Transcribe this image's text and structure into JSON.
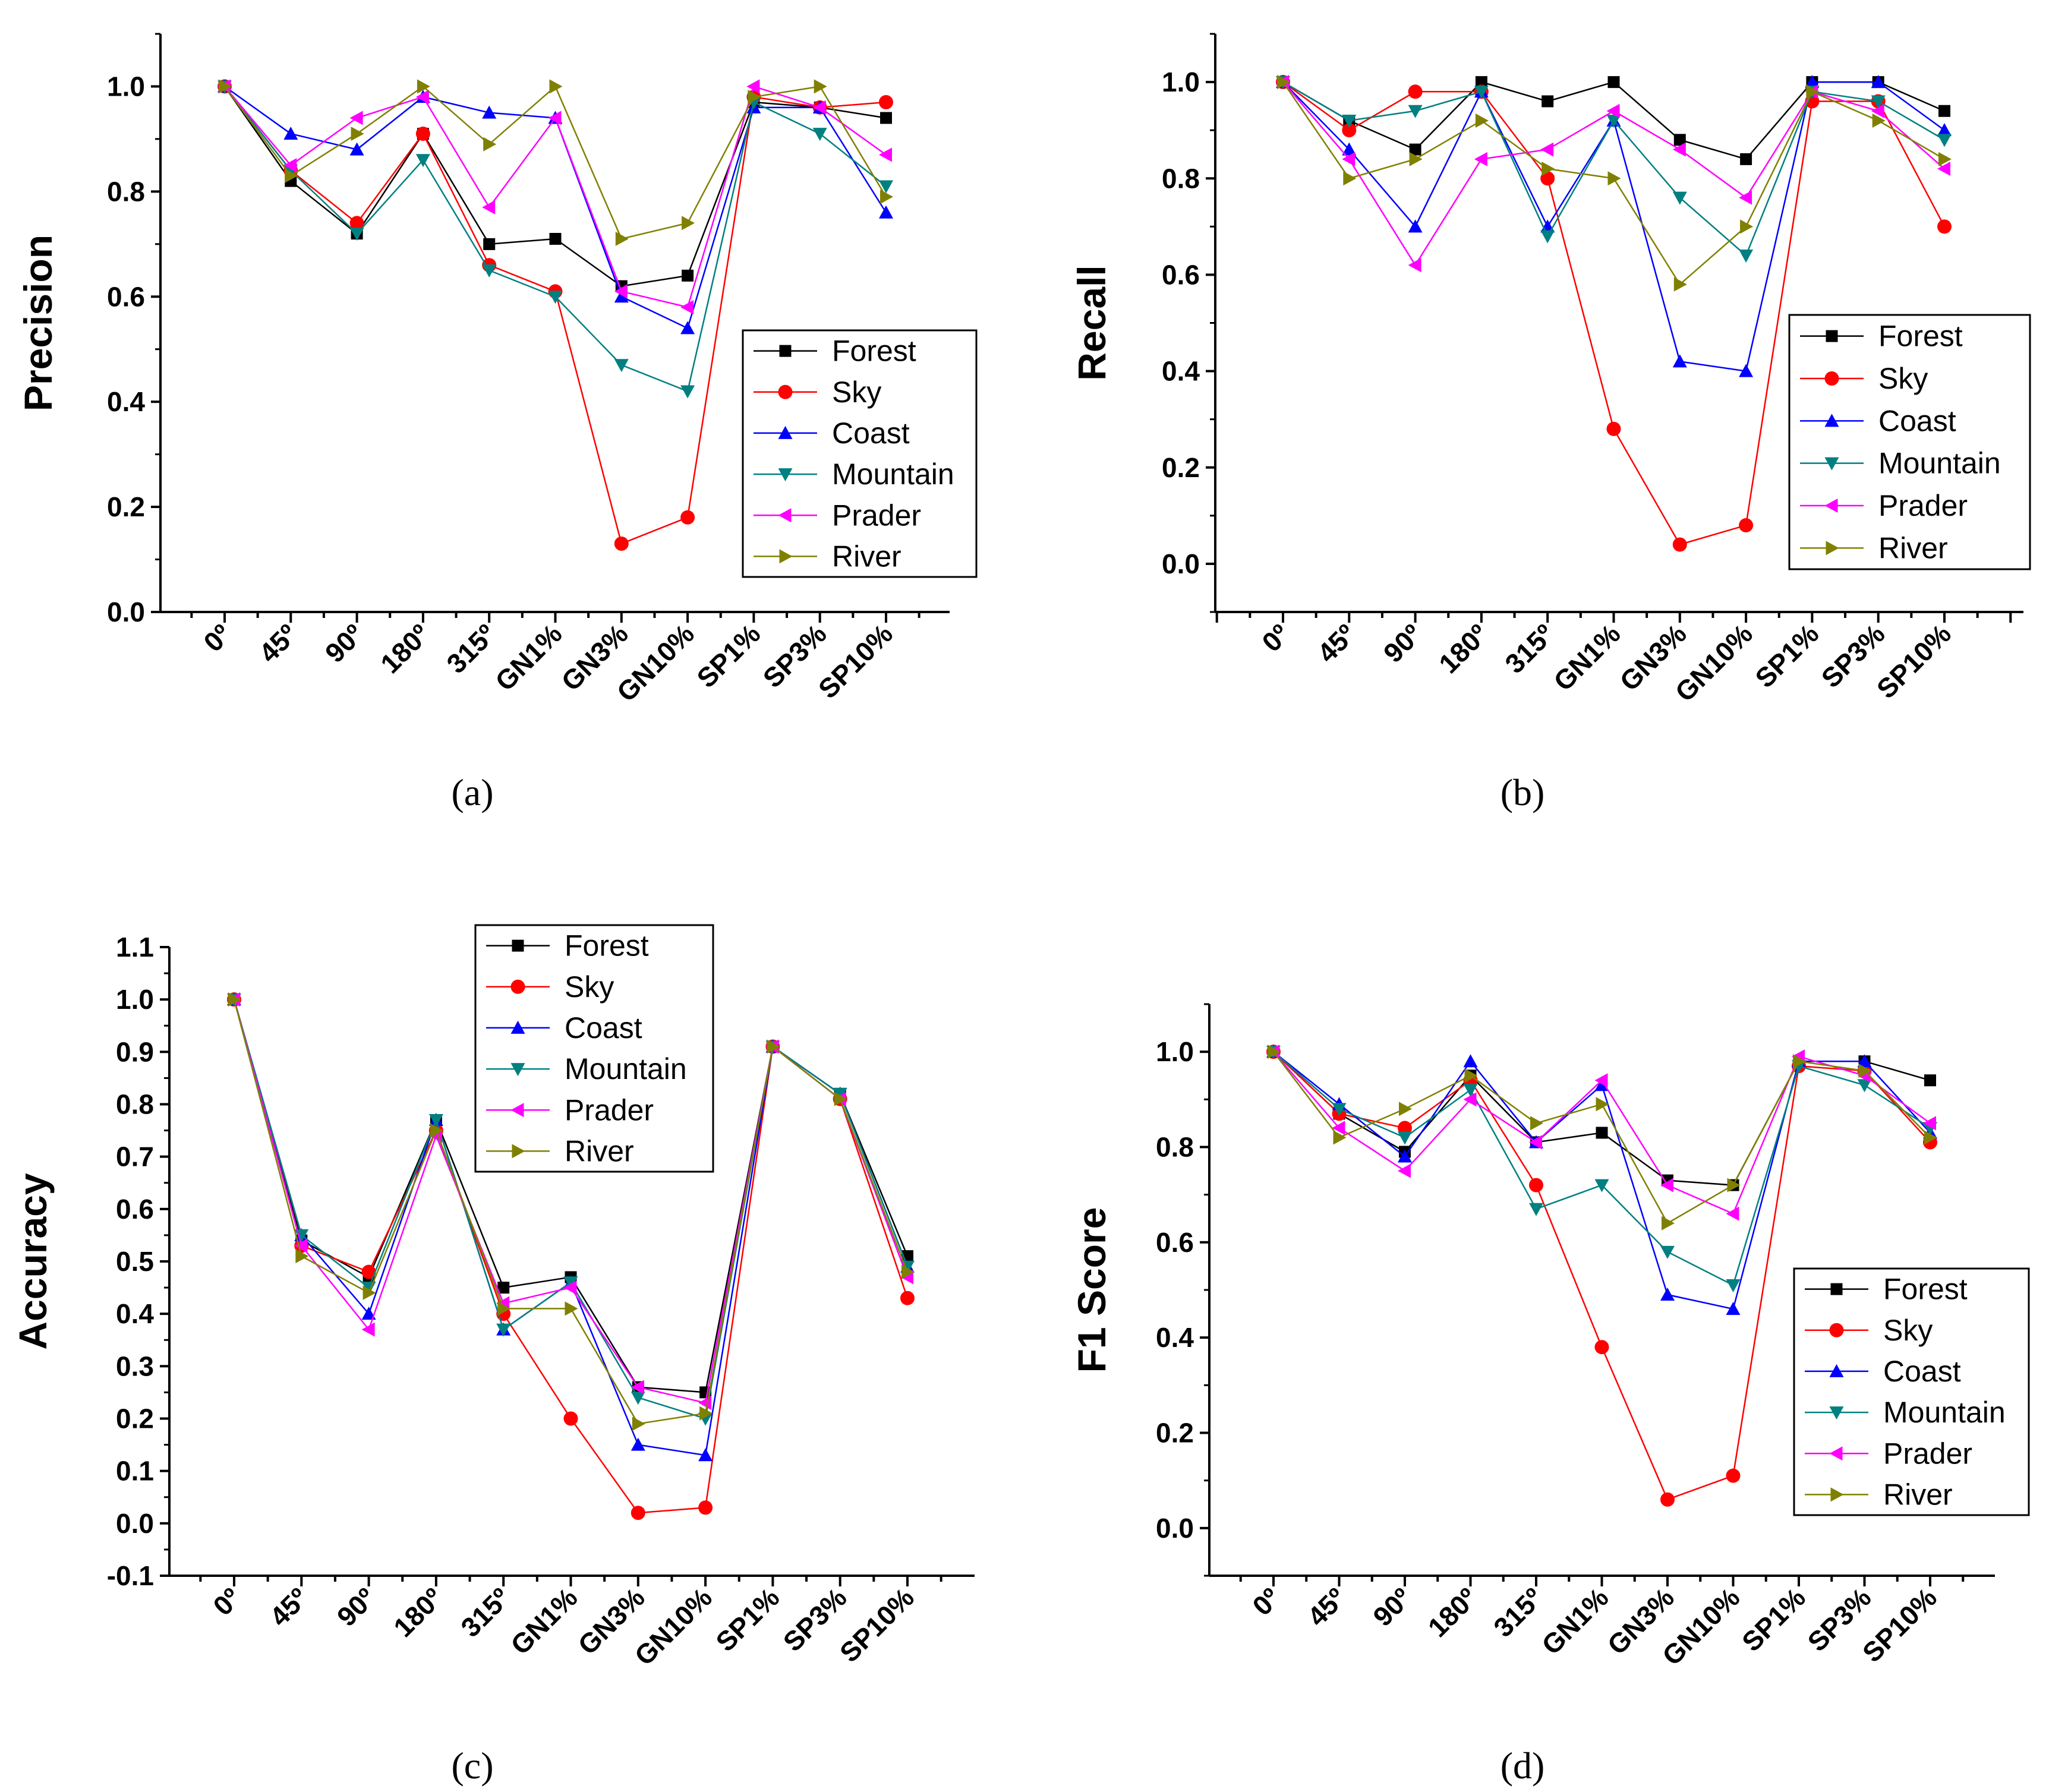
{
  "chart_data": [
    {
      "type": "line",
      "panel": "(a)",
      "ylabel": "Precision",
      "xlabel": "",
      "ylim": [
        0,
        1.1
      ],
      "yticks": [
        0.0,
        0.2,
        0.4,
        0.6,
        0.8,
        1.0
      ],
      "ytick_labels": [
        "0.0",
        "0.2",
        "0.4",
        "0.6",
        "0.8",
        "1.0"
      ],
      "legend_position": "center-right",
      "categories": [
        "0º",
        "45º",
        "90º",
        "180º",
        "315º",
        "GN1%",
        "GN3%",
        "GN10%",
        "SP1%",
        "SP3%",
        "SP10%"
      ],
      "series": [
        {
          "name": "Forest",
          "values": [
            1.0,
            0.82,
            0.72,
            0.91,
            0.7,
            0.71,
            0.62,
            0.64,
            0.97,
            0.96,
            0.94
          ]
        },
        {
          "name": "Sky",
          "values": [
            1.0,
            0.84,
            0.74,
            0.91,
            0.66,
            0.61,
            0.13,
            0.18,
            0.98,
            0.96,
            0.97
          ]
        },
        {
          "name": "Coast",
          "values": [
            1.0,
            0.91,
            0.88,
            0.98,
            0.95,
            0.94,
            0.6,
            0.54,
            0.96,
            0.96,
            0.76
          ]
        },
        {
          "name": "Mountain",
          "values": [
            1.0,
            0.84,
            0.72,
            0.86,
            0.65,
            0.6,
            0.47,
            0.42,
            0.97,
            0.91,
            0.81
          ]
        },
        {
          "name": "Prader",
          "values": [
            1.0,
            0.85,
            0.94,
            0.98,
            0.77,
            0.94,
            0.61,
            0.58,
            1.0,
            0.96,
            0.87
          ]
        },
        {
          "name": "River",
          "values": [
            1.0,
            0.83,
            0.91,
            1.0,
            0.89,
            1.0,
            0.71,
            0.74,
            0.98,
            1.0,
            0.79
          ]
        }
      ]
    },
    {
      "type": "line",
      "panel": "(b)",
      "ylabel": "Recall",
      "xlabel": "",
      "ylim": [
        -0.1,
        1.1
      ],
      "yticks": [
        0.0,
        0.2,
        0.4,
        0.6,
        0.8,
        1.0
      ],
      "ytick_labels": [
        "0.0",
        "0.2",
        "0.4",
        "0.6",
        "0.8",
        "1.0"
      ],
      "legend_position": "center-right",
      "categories": [
        "0º",
        "45º",
        "90º",
        "180º",
        "315º",
        "GN1%",
        "GN3%",
        "GN10%",
        "SP1%",
        "SP3%",
        "SP10%"
      ],
      "series": [
        {
          "name": "Forest",
          "values": [
            1.0,
            0.92,
            0.86,
            1.0,
            0.96,
            1.0,
            0.88,
            0.84,
            1.0,
            1.0,
            0.94
          ]
        },
        {
          "name": "Sky",
          "values": [
            1.0,
            0.9,
            0.98,
            0.98,
            0.8,
            0.28,
            0.04,
            0.08,
            0.96,
            0.96,
            0.7
          ]
        },
        {
          "name": "Coast",
          "values": [
            1.0,
            0.86,
            0.7,
            0.98,
            0.7,
            0.92,
            0.42,
            0.4,
            1.0,
            1.0,
            0.9
          ]
        },
        {
          "name": "Mountain",
          "values": [
            1.0,
            0.92,
            0.94,
            0.98,
            0.68,
            0.92,
            0.76,
            0.64,
            0.98,
            0.96,
            0.88
          ]
        },
        {
          "name": "Prader",
          "values": [
            1.0,
            0.84,
            0.62,
            0.84,
            0.86,
            0.94,
            0.86,
            0.76,
            0.98,
            0.94,
            0.82
          ]
        },
        {
          "name": "River",
          "values": [
            1.0,
            0.8,
            0.84,
            0.92,
            0.82,
            0.8,
            0.58,
            0.7,
            0.98,
            0.92,
            0.84
          ]
        }
      ]
    },
    {
      "type": "line",
      "panel": "(c)",
      "ylabel": "Accuracy",
      "xlabel": "",
      "ylim": [
        -0.1,
        1.1
      ],
      "yticks": [
        -0.1,
        0.0,
        0.1,
        0.2,
        0.3,
        0.4,
        0.5,
        0.6,
        0.7,
        0.8,
        0.9,
        1.0,
        1.1
      ],
      "ytick_labels": [
        "-0.1",
        "0.0",
        "0.1",
        "0.2",
        "0.3",
        "0.4",
        "0.5",
        "0.6",
        "0.7",
        "0.8",
        "0.9",
        "1.0",
        "1.1"
      ],
      "legend_position": "top-center",
      "categories": [
        "0º",
        "45º",
        "90º",
        "180º",
        "315º",
        "GN1%",
        "GN3%",
        "GN10%",
        "SP1%",
        "SP3%",
        "SP10%"
      ],
      "series": [
        {
          "name": "Forest",
          "values": [
            1.0,
            0.54,
            0.47,
            0.77,
            0.45,
            0.47,
            0.26,
            0.25,
            0.91,
            0.82,
            0.51
          ]
        },
        {
          "name": "Sky",
          "values": [
            1.0,
            0.53,
            0.48,
            0.75,
            0.4,
            0.2,
            0.02,
            0.03,
            0.91,
            0.81,
            0.43
          ]
        },
        {
          "name": "Coast",
          "values": [
            1.0,
            0.55,
            0.4,
            0.77,
            0.37,
            0.46,
            0.15,
            0.13,
            0.91,
            0.82,
            0.49
          ]
        },
        {
          "name": "Mountain",
          "values": [
            1.0,
            0.55,
            0.45,
            0.77,
            0.37,
            0.46,
            0.24,
            0.2,
            0.91,
            0.82,
            0.49
          ]
        },
        {
          "name": "Prader",
          "values": [
            1.0,
            0.53,
            0.37,
            0.74,
            0.42,
            0.45,
            0.26,
            0.23,
            0.91,
            0.81,
            0.47
          ]
        },
        {
          "name": "River",
          "values": [
            1.0,
            0.51,
            0.44,
            0.75,
            0.41,
            0.41,
            0.19,
            0.21,
            0.91,
            0.81,
            0.48
          ]
        }
      ]
    },
    {
      "type": "line",
      "panel": "(d)",
      "ylabel": "F1 Score",
      "xlabel": "",
      "ylim": [
        -0.1,
        1.1
      ],
      "yticks": [
        0.0,
        0.2,
        0.4,
        0.6,
        0.8,
        1.0
      ],
      "ytick_labels": [
        "0.0",
        "0.2",
        "0.4",
        "0.6",
        "0.8",
        "1.0"
      ],
      "legend_position": "bottom-right",
      "categories": [
        "0º",
        "45º",
        "90º",
        "180º",
        "315º",
        "GN1%",
        "GN3%",
        "GN10%",
        "SP1%",
        "SP3%",
        "SP10%"
      ],
      "series": [
        {
          "name": "Forest",
          "values": [
            1.0,
            0.87,
            0.79,
            0.95,
            0.81,
            0.83,
            0.73,
            0.72,
            0.98,
            0.98,
            0.94
          ]
        },
        {
          "name": "Sky",
          "values": [
            1.0,
            0.87,
            0.84,
            0.94,
            0.72,
            0.38,
            0.06,
            0.11,
            0.97,
            0.96,
            0.81
          ]
        },
        {
          "name": "Coast",
          "values": [
            1.0,
            0.89,
            0.78,
            0.98,
            0.81,
            0.93,
            0.49,
            0.46,
            0.98,
            0.98,
            0.83
          ]
        },
        {
          "name": "Mountain",
          "values": [
            1.0,
            0.88,
            0.82,
            0.92,
            0.67,
            0.72,
            0.58,
            0.51,
            0.97,
            0.93,
            0.84
          ]
        },
        {
          "name": "Prader",
          "values": [
            1.0,
            0.84,
            0.75,
            0.9,
            0.81,
            0.94,
            0.72,
            0.66,
            0.99,
            0.95,
            0.85
          ]
        },
        {
          "name": "River",
          "values": [
            1.0,
            0.82,
            0.88,
            0.95,
            0.85,
            0.89,
            0.64,
            0.72,
            0.98,
            0.96,
            0.82
          ]
        }
      ]
    }
  ],
  "series_styles": [
    {
      "name": "Forest",
      "color": "#000000",
      "marker": "square"
    },
    {
      "name": "Sky",
      "color": "#ff0000",
      "marker": "circle"
    },
    {
      "name": "Coast",
      "color": "#0000ff",
      "marker": "triangle-up"
    },
    {
      "name": "Mountain",
      "color": "#008080",
      "marker": "triangle-down"
    },
    {
      "name": "Prader",
      "color": "#ff00ff",
      "marker": "triangle-left"
    },
    {
      "name": "River",
      "color": "#808000",
      "marker": "triangle-right"
    }
  ],
  "captions": [
    "(a)",
    "(b)",
    "(c)",
    "(d)"
  ]
}
